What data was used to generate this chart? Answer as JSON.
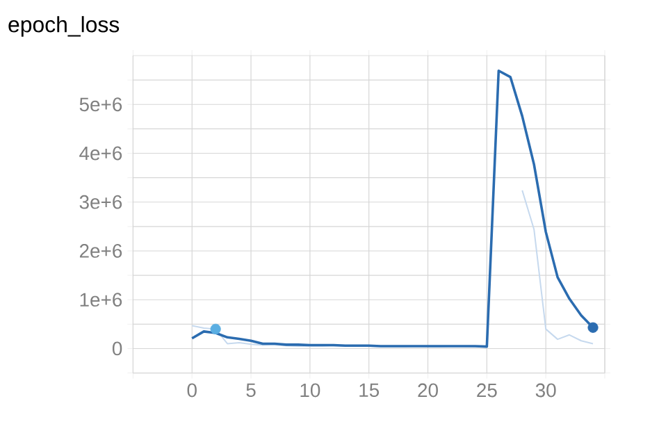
{
  "chart_data": {
    "type": "line",
    "title": "epoch_loss",
    "x": [
      0,
      1,
      2,
      3,
      4,
      5,
      6,
      7,
      8,
      9,
      10,
      11,
      12,
      13,
      14,
      15,
      16,
      17,
      18,
      19,
      20,
      21,
      22,
      23,
      24,
      25,
      26,
      27,
      28,
      29,
      30,
      31,
      32,
      33,
      34
    ],
    "series": [
      {
        "color": "#c6d9ee",
        "values": [
          470000,
          420000,
          400000,
          100000,
          120000,
          90000,
          70000,
          80000,
          60000,
          50000,
          50000,
          50000,
          60000,
          50000,
          50000,
          50000,
          40000,
          40000,
          40000,
          50000,
          40000,
          40000,
          50000,
          50000,
          40000,
          30000,
          null,
          null,
          3240000,
          2440000,
          400000,
          190000,
          280000,
          160000,
          100000
        ]
      },
      {
        "color": "#2b6cb0",
        "values": [
          210000,
          350000,
          320000,
          230000,
          200000,
          160000,
          100000,
          100000,
          80000,
          80000,
          70000,
          70000,
          70000,
          60000,
          60000,
          60000,
          50000,
          50000,
          50000,
          50000,
          50000,
          50000,
          50000,
          50000,
          50000,
          40000,
          5690000,
          5560000,
          4760000,
          3770000,
          2390000,
          1460000,
          1020000,
          680000,
          430000
        ]
      },
      {
        "type": "scatter",
        "color": "#5aaee2",
        "x": [
          2
        ],
        "values": [
          400000
        ]
      },
      {
        "type": "scatter",
        "color": "#2b6cb0",
        "x": [
          34
        ],
        "values": [
          430000
        ]
      }
    ],
    "xlim": [
      -5,
      35
    ],
    "ylim": [
      -500000,
      6000000
    ],
    "xticks": [
      {
        "value": -5,
        "label": null
      },
      0,
      5,
      10,
      15,
      20,
      25,
      30,
      {
        "value": 35,
        "label": null
      }
    ],
    "yticks": [
      {
        "value": -500000,
        "label": null
      },
      0,
      {
        "value": 500000,
        "label": null
      },
      {
        "value": 1000000,
        "label": "1e+6"
      },
      {
        "value": 1500000,
        "label": null
      },
      {
        "value": 2000000,
        "label": "2e+6"
      },
      {
        "value": 2500000,
        "label": null
      },
      {
        "value": 3000000,
        "label": "3e+6"
      },
      {
        "value": 3500000,
        "label": null
      },
      {
        "value": 4000000,
        "label": "4e+6"
      },
      {
        "value": 4500000,
        "label": null
      },
      {
        "value": 5000000,
        "label": "5e+6"
      },
      {
        "value": 5500000,
        "label": null
      }
    ],
    "grid": true
  }
}
